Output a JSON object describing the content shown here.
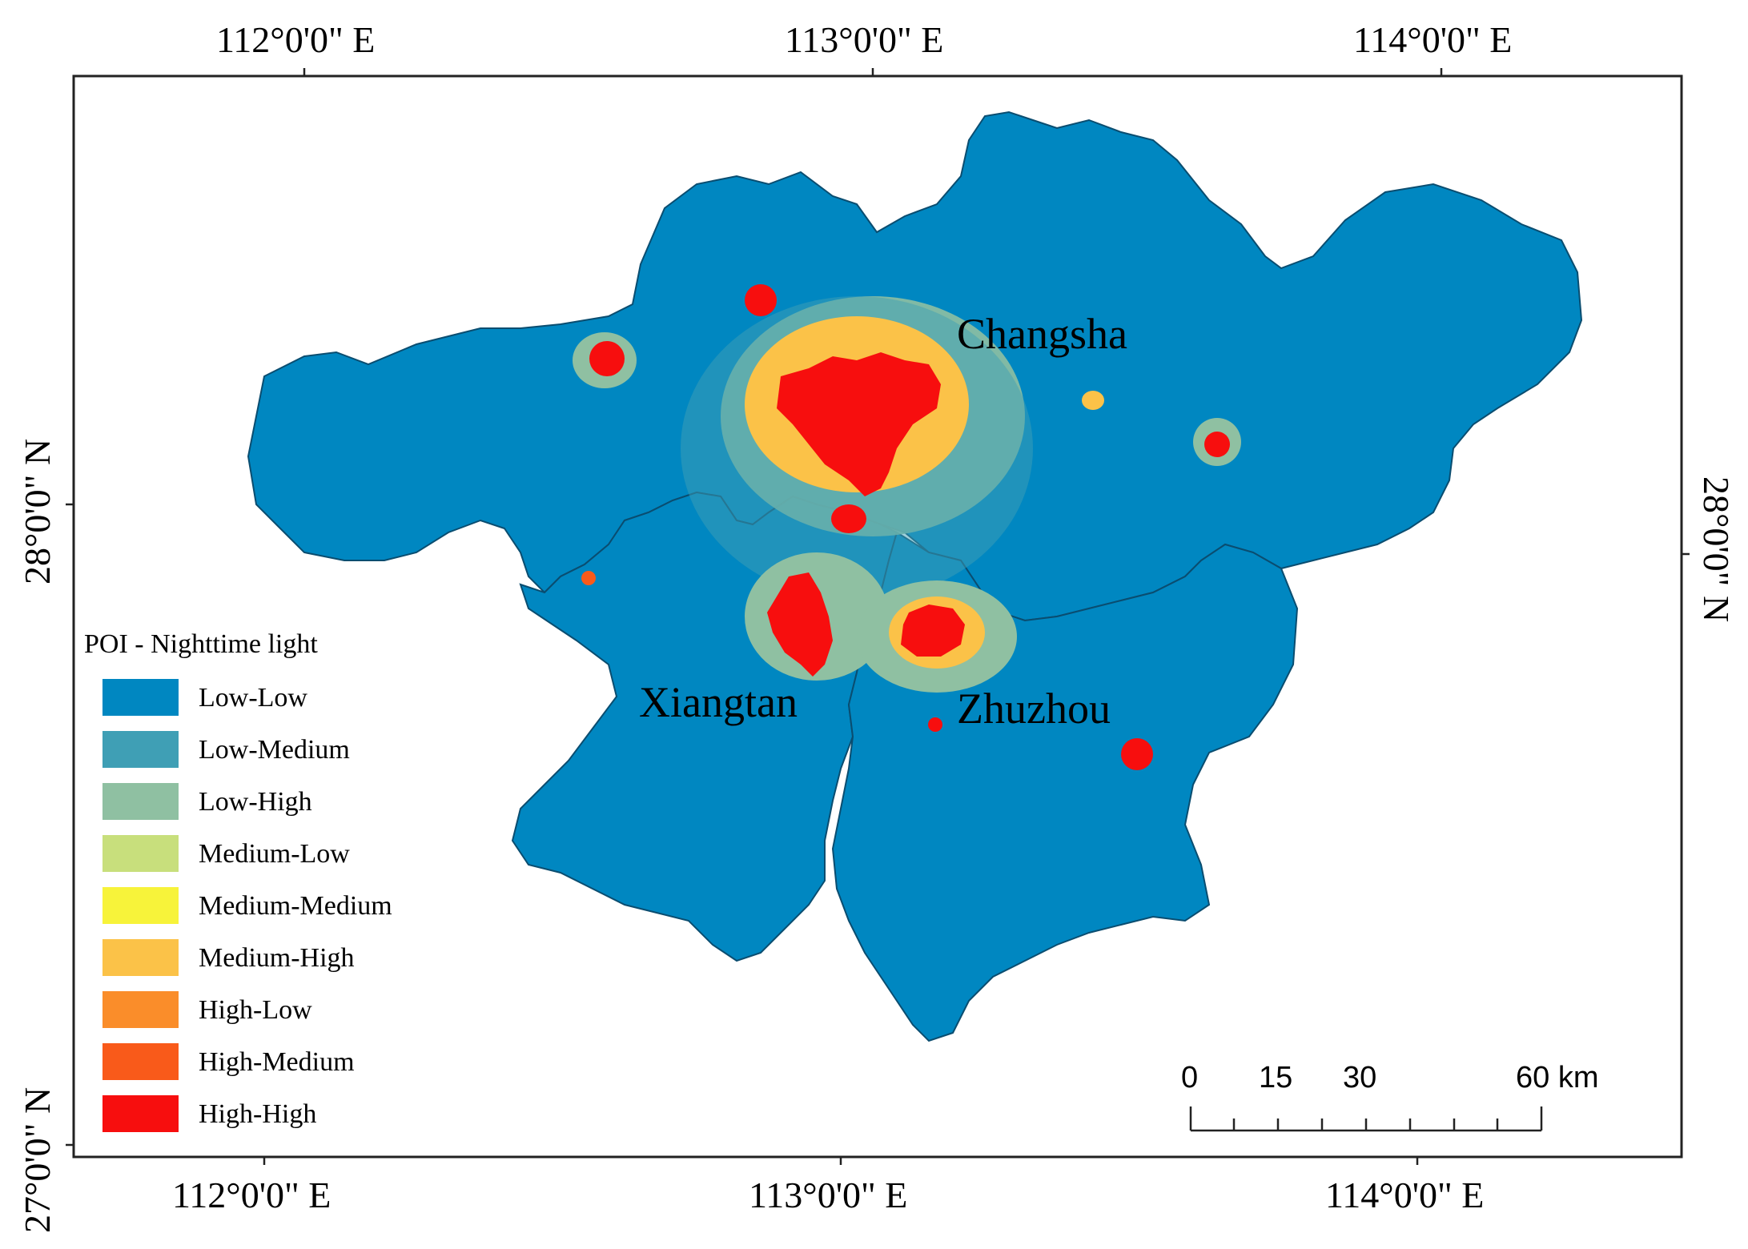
{
  "map": {
    "top_axis": [
      "112°0'0\" E",
      "113°0'0\" E",
      "114°0'0\" E"
    ],
    "bottom_axis": [
      "112°0'0\" E",
      "113°0'0\" E",
      "114°0'0\" E"
    ],
    "left_axis": [
      "28°0'0\" N",
      "27°0'0\" N"
    ],
    "right_axis": [
      "28°0'0\" N"
    ],
    "city_labels": [
      "Changsha",
      "Xiangtan",
      "Zhuzhou"
    ]
  },
  "legend": {
    "title": "POI - Nighttime light",
    "items": [
      {
        "label": "Low-Low",
        "color": "#0087c1"
      },
      {
        "label": "Low-Medium",
        "color": "#3f9fb5"
      },
      {
        "label": "Low-High",
        "color": "#8fc0a2"
      },
      {
        "label": "Medium-Low",
        "color": "#c8df7c"
      },
      {
        "label": "Medium-Medium",
        "color": "#f7f33a"
      },
      {
        "label": "Medium-High",
        "color": "#fbc248"
      },
      {
        "label": "High-Low",
        "color": "#fa8d2a"
      },
      {
        "label": "High-Medium",
        "color": "#f95a1a"
      },
      {
        "label": "High-High",
        "color": "#f70e0e"
      }
    ]
  },
  "scale_bar": {
    "labels": [
      "0",
      "15",
      "30",
      "60 km"
    ]
  }
}
